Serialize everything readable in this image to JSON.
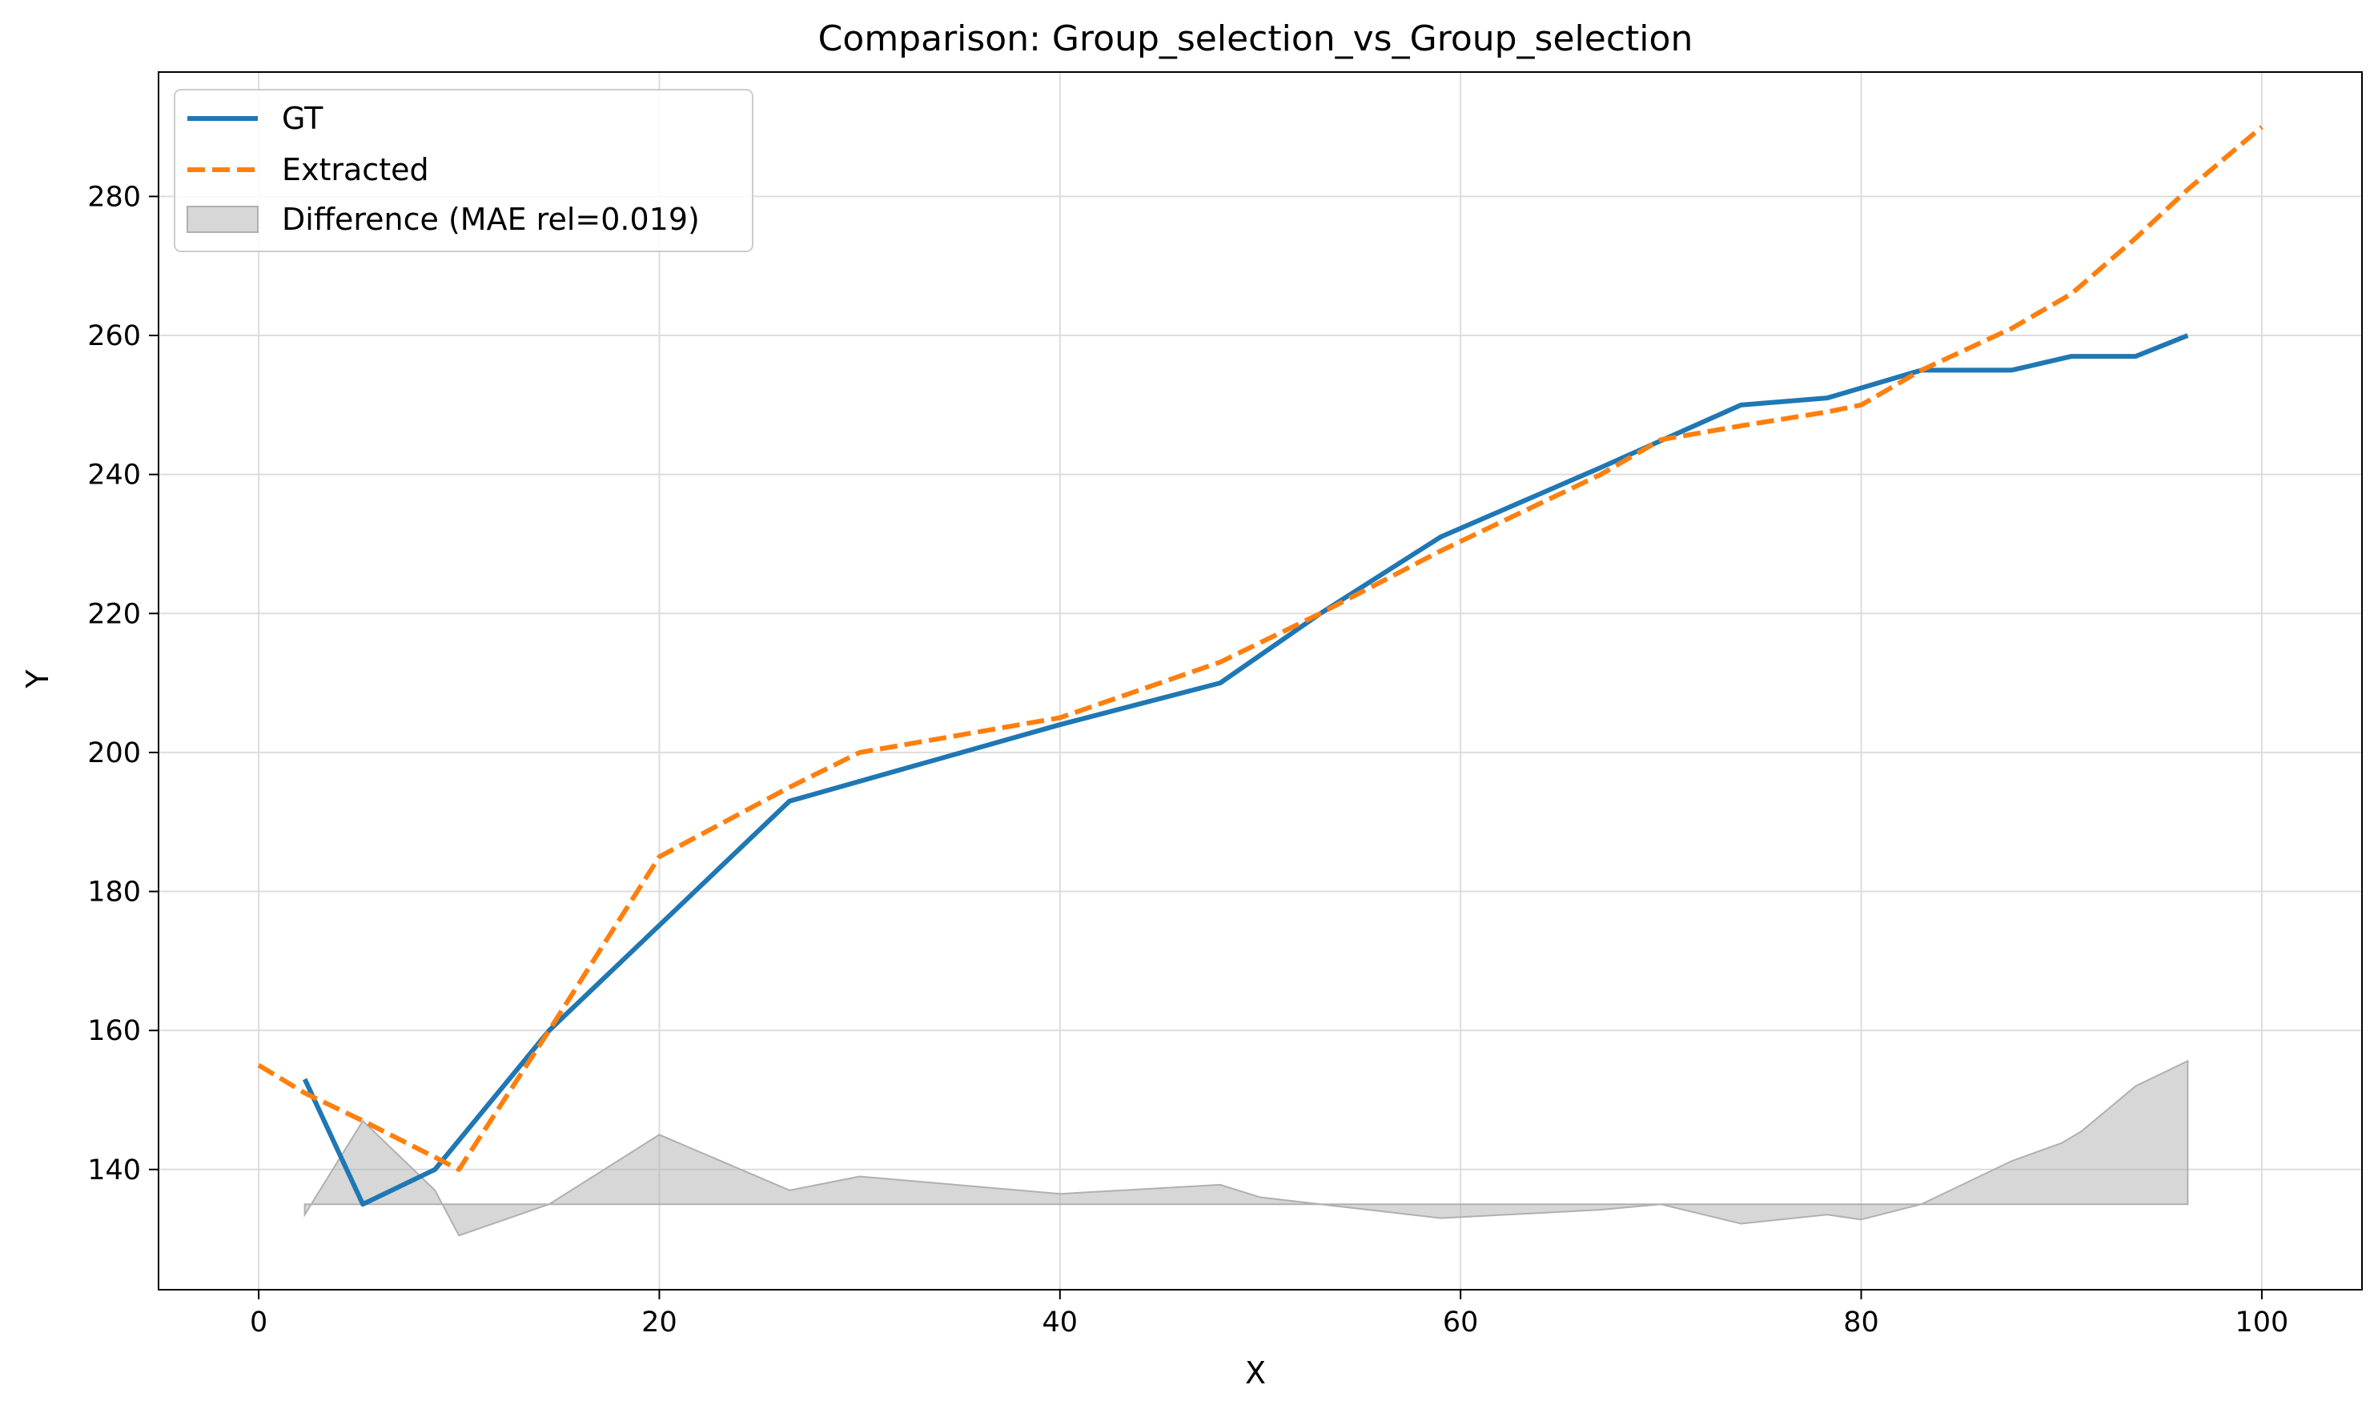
{
  "chart_data": {
    "type": "line",
    "title": "Comparison: Group_selection_vs_Group_selection",
    "xlabel": "X",
    "ylabel": "Y",
    "xlim": [
      -5,
      105
    ],
    "ylim": [
      122.7,
      297.9
    ],
    "x_ticks": [
      0,
      20,
      40,
      60,
      80,
      100
    ],
    "y_ticks": [
      140,
      160,
      180,
      200,
      220,
      240,
      260,
      280
    ],
    "grid": true,
    "legend_position": "top-left",
    "legend": {
      "gt": "GT",
      "extracted": "Extracted",
      "difference": "Difference (MAE rel=0.019)"
    },
    "colors": {
      "gt": "#1f77b4",
      "extracted": "#ff7f0e",
      "difference": "#b0b0b0"
    },
    "series": [
      {
        "name": "GT",
        "style": "solid",
        "x": [
          2.3,
          5.2,
          8.8,
          14.5,
          26.5,
          40.0,
          48.0,
          53.0,
          59.0,
          67.0,
          74.0,
          78.3,
          83.0,
          87.5,
          90.5,
          93.7,
          96.3
        ],
        "y": [
          153,
          135,
          140,
          160,
          193,
          204,
          210,
          220,
          231,
          241,
          250,
          251,
          255,
          255,
          257,
          257,
          260
        ]
      },
      {
        "name": "Extracted",
        "style": "dashed",
        "x": [
          0,
          2.3,
          5.2,
          10.0,
          14.5,
          20.0,
          26.5,
          30.0,
          40.0,
          48.0,
          53.0,
          59.0,
          67.0,
          70.0,
          74.0,
          78.3,
          80.0,
          83.0,
          87.5,
          90.5,
          93.7,
          96.3,
          100.0
        ],
        "y": [
          155,
          151,
          147,
          140,
          160,
          185,
          195,
          200,
          205,
          213,
          220,
          229,
          240,
          245,
          247,
          249,
          250,
          255,
          261,
          266,
          274,
          281,
          290
        ]
      }
    ],
    "difference_band": {
      "name": "Difference (MAE rel=0.019)",
      "baseline": 135,
      "x": [
        2.3,
        5.2,
        8.8,
        10.0,
        14.5,
        20.0,
        26.5,
        30.0,
        40.0,
        48.0,
        50.0,
        53.0,
        59.0,
        67.0,
        70.0,
        74.0,
        78.3,
        80.0,
        83.0,
        87.5,
        90.0,
        91.0,
        93.7,
        96.3
      ],
      "y": [
        133.5,
        147,
        137,
        130.5,
        135,
        145,
        137,
        139,
        136.5,
        137.8,
        136,
        135,
        133,
        134.2,
        135,
        132.2,
        133.5,
        132.8,
        135,
        141.2,
        143.8,
        145.5,
        152,
        155.6
      ]
    }
  }
}
